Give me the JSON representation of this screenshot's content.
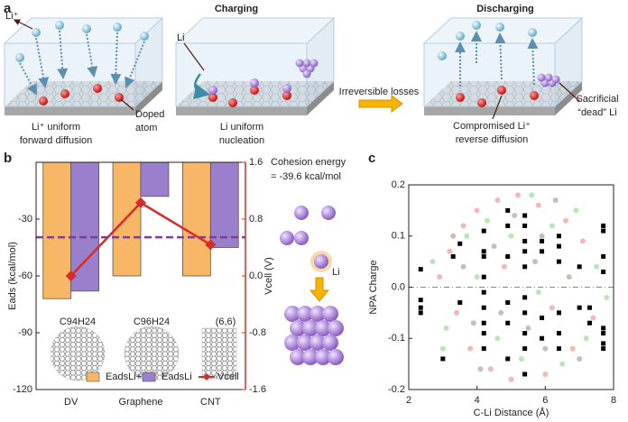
{
  "panel_labels": [
    "a",
    "b",
    "c"
  ],
  "panel_a": {
    "title_charging": "Charging",
    "title_discharging": "Discharging",
    "li_ion": "Li⁺",
    "li": "Li",
    "doped_atom": [
      "Doped",
      "atom"
    ],
    "caption_1": [
      "Li⁺ uniform",
      "forward diffusion"
    ],
    "caption_2": [
      "Li uniform",
      "nucleation"
    ],
    "transition": "Irreversible losses",
    "caption_3": [
      "Compromised Li⁺",
      "reverse diffusion"
    ],
    "dead_li": [
      "Sacrificial",
      "“dead” Li"
    ]
  },
  "chart_data": [
    {
      "type": "bar",
      "categories": [
        "DV",
        "Graphene",
        "CNT"
      ],
      "series": [
        {
          "name": "EadsLi+",
          "color": "#f8b766",
          "values": [
            -72,
            -60,
            -60
          ]
        },
        {
          "name": "EadsLi",
          "color": "#9a80cc",
          "values": [
            -68,
            -18,
            -45
          ]
        },
        {
          "name": "Vcell",
          "color": "#d62c2c",
          "values": [
            0.0,
            1.03,
            0.44
          ],
          "axis": "y2",
          "type": "line"
        }
      ],
      "ylabel": "Eads (kcal/mol)",
      "y2label": "Vcell (V)",
      "ylim": [
        -120,
        0
      ],
      "yticks": [
        -120,
        -90,
        -60,
        -30
      ],
      "y2lim": [
        -1.6,
        1.6
      ],
      "y2ticks": [
        -1.6,
        -0.8,
        {
          "value": 0,
          "label": "0.0"
        },
        0.8,
        1.6
      ],
      "y2color": "#d62c2c",
      "reference_line": {
        "value": -39.6,
        "label": "= -39.6 kcal/mol",
        "color": "#7b3f98"
      },
      "annotation": "Cohesion energy",
      "atom_label": "Li",
      "structure_labels": [
        "C94H24",
        "C96H24",
        "(6,6)"
      ],
      "legend": "bottom"
    },
    {
      "type": "scatter",
      "xlabel": "C-Li Distance (Å)",
      "ylabel": "NPA Charge",
      "xlim": [
        2,
        8
      ],
      "xticks": [
        2,
        4,
        6,
        8
      ],
      "ylim": [
        -0.2,
        0.2
      ],
      "yticks": [
        -0.2,
        -0.1,
        {
          "value": 0,
          "label": "0.0"
        },
        0.1,
        0.2
      ],
      "series": [
        {
          "color": "#f2b8b8",
          "marker": "circle",
          "x": [
            3.2,
            3.6,
            4.0,
            4.6,
            5.2,
            5.8,
            6.6,
            7.1,
            3.8,
            4.4,
            5.0,
            6.0,
            6.8,
            2.9,
            4.8,
            6.2,
            7.4,
            3.4
          ],
          "values": [
            0.07,
            0.12,
            0.15,
            0.17,
            0.18,
            0.16,
            0.13,
            0.09,
            -0.12,
            -0.16,
            -0.18,
            -0.17,
            -0.12,
            0.02,
            0.04,
            -0.04,
            -0.06,
            -0.05
          ]
        },
        {
          "color": "#b9e5b9",
          "marker": "circle",
          "x": [
            2.7,
            3.1,
            3.7,
            4.3,
            5.0,
            5.6,
            6.2,
            6.9,
            7.5,
            7.8,
            3.0,
            4.6,
            5.3,
            6.5,
            7.2,
            4.0,
            5.8
          ],
          "values": [
            0.05,
            -0.08,
            0.1,
            0.13,
            0.1,
            0.18,
            0.12,
            0.15,
            0.04,
            -0.02,
            -0.12,
            -0.1,
            -0.14,
            -0.15,
            -0.1,
            0.02,
            -0.01
          ]
        },
        {
          "color": "#cbbcbc",
          "marker": "circle",
          "x": [
            3.3,
            3.9,
            4.5,
            5.1,
            5.7,
            6.3,
            6.7,
            7.0,
            4.1,
            5.5,
            3.6,
            6.0,
            4.7,
            5.9
          ],
          "values": [
            0.1,
            -0.07,
            0.08,
            0.14,
            0.05,
            0.17,
            0.02,
            -0.14,
            -0.16,
            -0.08,
            0.04,
            -0.12,
            -0.05,
            0.1
          ]
        },
        {
          "color": "#000000",
          "marker": "square",
          "x": [
            2.35,
            2.35,
            2.35,
            2.35,
            3.0,
            3.3,
            3.5,
            3.5,
            4.2,
            4.2,
            4.2,
            4.2,
            4.2,
            4.2,
            4.2,
            4.2,
            4.2,
            4.9,
            4.9,
            4.9,
            4.9,
            4.9,
            4.9,
            5.4,
            5.4,
            5.4,
            5.4,
            5.4,
            5.4,
            5.4,
            5.4,
            5.4,
            5.4,
            5.9,
            5.9,
            5.9,
            5.9,
            6.4,
            6.4,
            6.4,
            6.4,
            6.4,
            6.4,
            7.0,
            7.0,
            7.3,
            7.3,
            7.7,
            7.7,
            7.7,
            7.7,
            7.7,
            7.7,
            7.7,
            7.7
          ],
          "values": [
            0.035,
            -0.025,
            -0.04,
            -0.05,
            -0.14,
            0.06,
            0.085,
            -0.03,
            0.11,
            0.07,
            0.06,
            0.02,
            -0.01,
            -0.04,
            -0.07,
            -0.09,
            -0.12,
            0.15,
            0.12,
            0.06,
            -0.03,
            -0.07,
            -0.14,
            0.14,
            0.12,
            0.09,
            0.07,
            0.04,
            -0.02,
            -0.05,
            -0.09,
            -0.12,
            -0.17,
            0.09,
            0.07,
            -0.06,
            -0.1,
            0.1,
            0.08,
            0.05,
            -0.05,
            -0.09,
            -0.12,
            0.04,
            -0.04,
            -0.04,
            -0.07,
            0.12,
            0.11,
            0.06,
            0.03,
            -0.08,
            -0.09,
            -0.11,
            -0.12
          ]
        }
      ]
    }
  ]
}
